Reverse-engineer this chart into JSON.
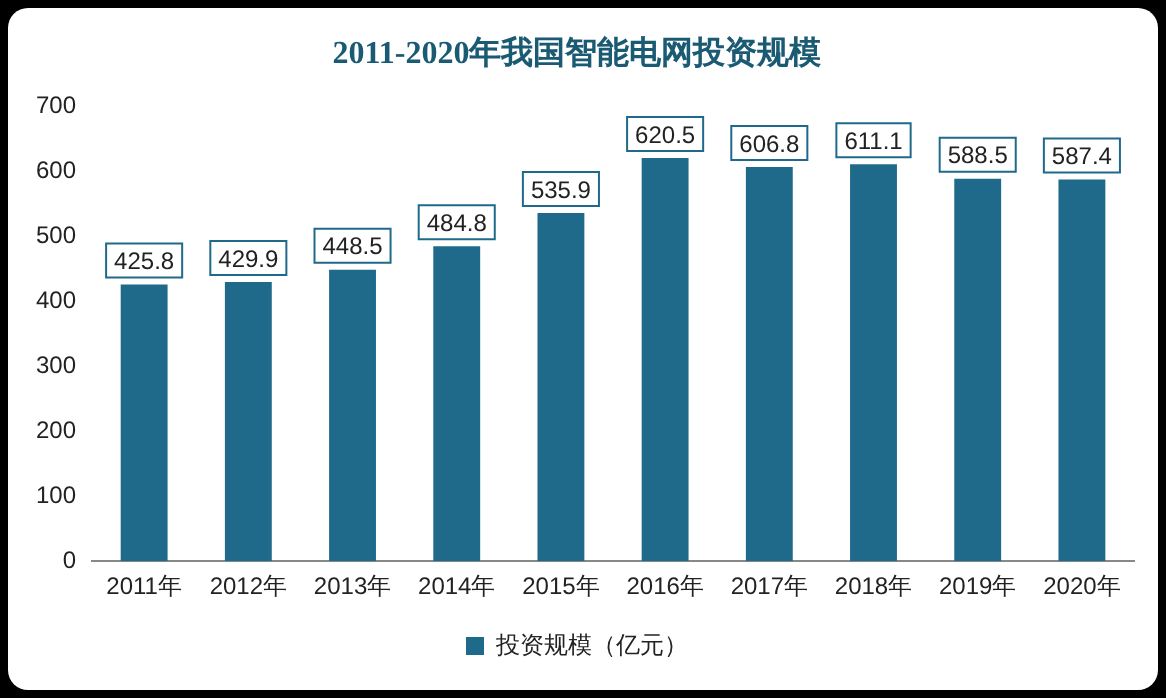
{
  "chart_data": {
    "type": "bar",
    "title": "2011-2020年我国智能电网投资规模",
    "categories": [
      "2011年",
      "2012年",
      "2013年",
      "2014年",
      "2015年",
      "2016年",
      "2017年",
      "2018年",
      "2019年",
      "2020年"
    ],
    "series": [
      {
        "name": "投资规模（亿元）",
        "color": "#1f6a8a",
        "values": [
          425.8,
          429.9,
          448.5,
          484.8,
          535.9,
          620.5,
          606.8,
          611.1,
          588.5,
          587.4
        ]
      }
    ],
    "ylim": [
      0,
      700
    ],
    "yticks": [
      0,
      100,
      200,
      300,
      400,
      500,
      600,
      700
    ],
    "grid": false,
    "legend": "bottom",
    "data_labels": true
  }
}
